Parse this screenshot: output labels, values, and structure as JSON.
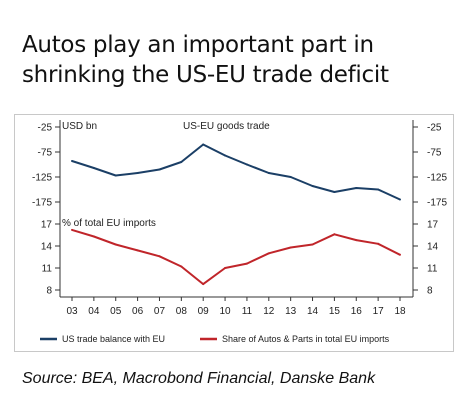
{
  "title_line1": "Autos play an important part in",
  "title_line2": "shrinking the US-EU trade deficit",
  "source": "Source: BEA, Macrobond Financial, Danske Bank",
  "chart_data": {
    "type": "line",
    "categories": [
      "03",
      "04",
      "05",
      "06",
      "07",
      "08",
      "09",
      "10",
      "11",
      "12",
      "13",
      "14",
      "15",
      "16",
      "17",
      "18"
    ],
    "panels": [
      {
        "title": "US-EU goods trade",
        "unit_label": "USD bn",
        "yticks": [
          -25,
          -75,
          -125,
          -175
        ],
        "ylim": [
          -200,
          -25
        ],
        "series": [
          {
            "name": "US trade balance with EU",
            "color": "#1b3f66",
            "values": [
              -93,
              -107,
              -122,
              -117,
              -110,
              -95,
              -60,
              -82,
              -100,
              -117,
              -125,
              -143,
              -155,
              -147,
              -150,
              -170
            ]
          }
        ]
      },
      {
        "title": "% of total EU imports",
        "yticks": [
          17,
          14,
          11,
          8
        ],
        "ylim": [
          7,
          17.5
        ],
        "series": [
          {
            "name": "Share of Autos & Parts in total EU imports",
            "color": "#c0252a",
            "values": [
              16.2,
              15.3,
              14.2,
              13.4,
              12.6,
              11.2,
              8.8,
              11.0,
              11.6,
              13.0,
              13.8,
              14.2,
              15.6,
              14.8,
              14.3,
              12.8
            ]
          }
        ]
      }
    ],
    "legend_position": "bottom"
  }
}
